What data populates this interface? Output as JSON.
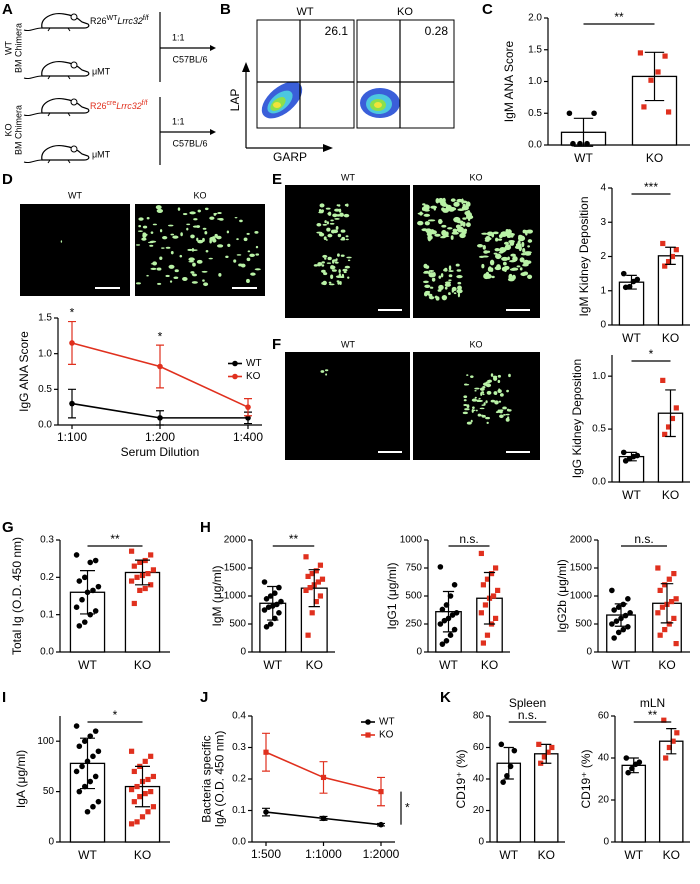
{
  "panel_labels": [
    "A",
    "B",
    "C",
    "D",
    "E",
    "F",
    "G",
    "H",
    "I",
    "J",
    "K"
  ],
  "schematic": {
    "wt_group": "WT",
    "ko_group": "KO",
    "chimera": "BM Chimera",
    "donor_prefix": "R26",
    "wt_allele": "WT",
    "ko_allele": "cre",
    "gene": "Lrrc32",
    "flox": "f/f",
    "mumt": "μMT",
    "ratio": "1:1",
    "recipient": "C57BL/6"
  },
  "flow": {
    "plots": [
      {
        "title": "WT",
        "percent": "26.1"
      },
      {
        "title": "KO",
        "percent": "0.28"
      }
    ],
    "y_label": "LAP",
    "x_label": "GARP"
  },
  "micrograph_labels": {
    "D": [
      "WT",
      "KO"
    ],
    "E": [
      "WT",
      "KO"
    ],
    "F": [
      "WT",
      "KO"
    ]
  },
  "chart_data": [
    {
      "type": "bar",
      "ylabel": "IgM ANA Score",
      "categories": [
        "WT",
        "KO"
      ],
      "values": [
        0.2,
        1.08
      ],
      "errors": [
        0.22,
        0.38
      ],
      "points": [
        [
          0.5,
          0.5,
          0.02,
          0.02,
          0.02
        ],
        [
          1.45,
          1.4,
          1.15,
          1.02,
          0.6,
          0.52
        ]
      ],
      "colors": [
        "#000000",
        "#e0301e"
      ],
      "markers": [
        "circle",
        "square"
      ],
      "ylim": [
        0,
        2
      ],
      "yticks": [
        {
          "value": 0,
          "label": "0.0"
        },
        0.5,
        {
          "value": 1,
          "label": "1.0"
        },
        1.5,
        {
          "value": 2,
          "label": "2.0"
        }
      ],
      "annotation": "**"
    },
    {
      "type": "line",
      "ylabel": "IgG ANA Score",
      "xlabel": "Serum Dilution",
      "categories": [
        "1:100",
        "1:200",
        "1:400"
      ],
      "series": [
        {
          "name": "WT",
          "color": "#000000",
          "marker": "circle",
          "values": [
            0.3,
            0.1,
            0.1
          ],
          "errors": [
            0.2,
            0.1,
            0.08
          ]
        },
        {
          "name": "KO",
          "color": "#e0301e",
          "marker": "circle",
          "values": [
            1.15,
            0.82,
            0.25
          ],
          "errors": [
            0.3,
            0.3,
            0.12
          ]
        }
      ],
      "ylim": [
        0,
        1.5
      ],
      "yticks": [
        {
          "value": 0,
          "label": "0.0"
        },
        0.5,
        {
          "value": 1,
          "label": "1.0"
        },
        1.5
      ],
      "legend": "center right",
      "annotations": [
        "*",
        "*",
        null
      ]
    },
    {
      "type": "bar",
      "ylabel": "IgM Kidney Deposition",
      "categories": [
        "WT",
        "KO"
      ],
      "values": [
        1.25,
        2.02
      ],
      "errors": [
        0.2,
        0.25
      ],
      "points": [
        [
          1.5,
          1.33,
          1.27,
          1.12,
          1.1
        ],
        [
          2.38,
          2.2,
          2.0,
          1.85,
          1.72
        ]
      ],
      "colors": [
        "#000000",
        "#e0301e"
      ],
      "markers": [
        "circle",
        "square"
      ],
      "ylim": [
        0,
        4
      ],
      "yticks": [
        0,
        1,
        2,
        3,
        4
      ],
      "annotation": "***"
    },
    {
      "type": "bar",
      "ylabel": "IgG Kidney Deposition",
      "categories": [
        "WT",
        "KO"
      ],
      "values": [
        0.24,
        0.65
      ],
      "errors": [
        0.04,
        0.22
      ],
      "points": [
        [
          0.28,
          0.25,
          0.24,
          0.22,
          0.2
        ],
        [
          0.96,
          0.7,
          0.6,
          0.52,
          0.45
        ]
      ],
      "colors": [
        "#000000",
        "#e0301e"
      ],
      "markers": [
        "circle",
        "square"
      ],
      "ylim": [
        0,
        1.2
      ],
      "yticks": [
        {
          "value": 0,
          "label": "0.0"
        },
        0.5,
        {
          "value": 1,
          "label": "1.0"
        }
      ],
      "annotation": "*"
    },
    {
      "type": "bar",
      "ylabel": "Total Ig (O.D. 450 nm)",
      "categories": [
        "WT",
        "KO"
      ],
      "values": [
        0.16,
        0.213
      ],
      "errors": [
        0.058,
        0.033
      ],
      "points": [
        [
          0.26,
          0.245,
          0.24,
          0.2,
          0.19,
          0.175,
          0.165,
          0.16,
          0.14,
          0.12,
          0.11,
          0.1,
          0.08,
          0.07
        ],
        [
          0.27,
          0.26,
          0.245,
          0.24,
          0.23,
          0.22,
          0.21,
          0.205,
          0.2,
          0.19,
          0.18,
          0.17,
          0.165,
          0.13
        ]
      ],
      "colors": [
        "#000000",
        "#e0301e"
      ],
      "markers": [
        "circle",
        "square"
      ],
      "ylim": [
        0,
        0.3
      ],
      "yticks": [
        {
          "value": 0,
          "label": "0.0"
        },
        0.1,
        0.2,
        0.3
      ],
      "annotation": "**"
    },
    {
      "type": "bar",
      "ylabel": "IgM (μg/ml)",
      "categories": [
        "WT",
        "KO"
      ],
      "values": [
        870,
        1140
      ],
      "errors": [
        300,
        330
      ],
      "points": [
        [
          1250,
          1150,
          1050,
          1000,
          950,
          900,
          850,
          820,
          800,
          750,
          700,
          600,
          500,
          450
        ],
        [
          1700,
          1550,
          1450,
          1400,
          1350,
          1300,
          1250,
          1200,
          1150,
          1100,
          1000,
          900,
          700,
          300
        ]
      ],
      "colors": [
        "#000000",
        "#e0301e"
      ],
      "markers": [
        "circle",
        "square"
      ],
      "ylim": [
        0,
        2000
      ],
      "yticks": [
        0,
        500,
        1000,
        1500,
        2000
      ],
      "annotation": "**"
    },
    {
      "type": "bar",
      "ylabel": "IgG1 (μg/ml)",
      "categories": [
        "WT",
        "KO"
      ],
      "values": [
        360,
        480
      ],
      "errors": [
        180,
        230
      ],
      "points": [
        [
          760,
          600,
          500,
          420,
          380,
          350,
          330,
          300,
          280,
          250,
          200,
          150,
          100,
          70
        ],
        [
          880,
          750,
          700,
          650,
          600,
          550,
          500,
          480,
          420,
          350,
          300,
          250,
          150,
          80
        ]
      ],
      "colors": [
        "#000000",
        "#e0301e"
      ],
      "markers": [
        "circle",
        "square"
      ],
      "ylim": [
        0,
        1000
      ],
      "yticks": [
        0,
        250,
        500,
        750,
        1000
      ],
      "annotation": "n.s."
    },
    {
      "type": "bar",
      "ylabel": "IgG2b (μg/ml)",
      "categories": [
        "WT",
        "KO"
      ],
      "values": [
        660,
        870
      ],
      "errors": [
        200,
        350
      ],
      "points": [
        [
          1100,
          950,
          850,
          800,
          750,
          700,
          650,
          600,
          550,
          500,
          450,
          400,
          350,
          250
        ],
        [
          1500,
          1400,
          1300,
          1200,
          1100,
          950,
          900,
          850,
          800,
          700,
          600,
          500,
          400,
          300,
          150
        ]
      ],
      "colors": [
        "#000000",
        "#e0301e"
      ],
      "markers": [
        "circle",
        "square"
      ],
      "ylim": [
        0,
        2000
      ],
      "yticks": [
        0,
        500,
        1000,
        1500,
        2000
      ],
      "annotation": "n.s."
    },
    {
      "type": "bar",
      "ylabel": "IgA (μg/ml)",
      "categories": [
        "WT",
        "KO"
      ],
      "values": [
        78,
        55
      ],
      "errors": [
        25,
        20
      ],
      "points": [
        [
          115,
          110,
          105,
          100,
          95,
          90,
          85,
          80,
          75,
          70,
          65,
          60,
          55,
          50,
          40,
          35,
          30
        ],
        [
          90,
          85,
          80,
          75,
          70,
          65,
          62,
          60,
          55,
          52,
          50,
          48,
          45,
          40,
          35,
          30,
          25,
          20,
          18
        ]
      ],
      "colors": [
        "#000000",
        "#e0301e"
      ],
      "markers": [
        "circle",
        "square"
      ],
      "ylim": [
        0,
        125
      ],
      "yticks": [
        0,
        50,
        100
      ],
      "annotation": "*"
    },
    {
      "type": "line",
      "ylabel": [
        "Bacteria specific",
        "IgA (O.D. 450 nm)"
      ],
      "categories": [
        "1:500",
        "1:1000",
        "1:2000"
      ],
      "series": [
        {
          "name": "WT",
          "color": "#000000",
          "marker": "circle",
          "values": [
            0.095,
            0.075,
            0.055
          ],
          "errors": [
            0.012,
            0.006,
            0.004
          ]
        },
        {
          "name": "KO",
          "color": "#e0301e",
          "marker": "square",
          "values": [
            0.285,
            0.205,
            0.16
          ],
          "errors": [
            0.06,
            0.05,
            0.045
          ]
        }
      ],
      "ylim": [
        0,
        0.4
      ],
      "yticks": [
        {
          "value": 0,
          "label": "0.0"
        },
        0.1,
        0.2,
        0.3,
        0.4
      ],
      "legend": "upper right",
      "annotation": "*"
    },
    {
      "type": "bar",
      "title": "Spleen",
      "ylabel": "CD19⁺ (%)",
      "categories": [
        "WT",
        "KO"
      ],
      "values": [
        50,
        56
      ],
      "errors": [
        10,
        6
      ],
      "points": [
        [
          62,
          58,
          48,
          42,
          38
        ],
        [
          62,
          60,
          57,
          54,
          50
        ]
      ],
      "colors": [
        "#000000",
        "#e0301e"
      ],
      "markers": [
        "circle",
        "square"
      ],
      "ylim": [
        0,
        80
      ],
      "yticks": [
        0,
        20,
        40,
        60,
        80
      ],
      "annotation": "n.s."
    },
    {
      "type": "bar",
      "title": "mLN",
      "ylabel": "CD19⁺ (%)",
      "categories": [
        "WT",
        "KO"
      ],
      "values": [
        36.5,
        48
      ],
      "errors": [
        3.5,
        6
      ],
      "points": [
        [
          40,
          38,
          37,
          35,
          33
        ],
        [
          58,
          52,
          48,
          45,
          40
        ]
      ],
      "colors": [
        "#000000",
        "#e0301e"
      ],
      "markers": [
        "circle",
        "square"
      ],
      "ylim": [
        0,
        60
      ],
      "yticks": [
        0,
        20,
        40,
        60
      ],
      "annotation": "**"
    }
  ]
}
